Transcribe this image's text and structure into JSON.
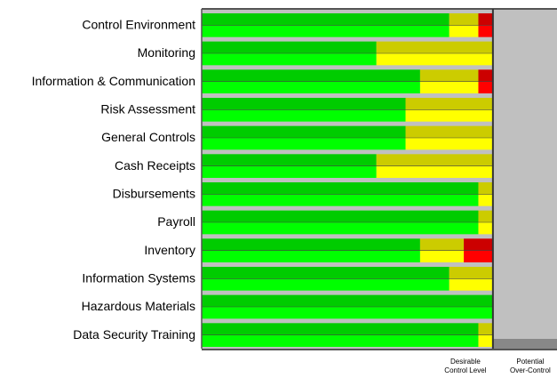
{
  "chart_data": {
    "type": "stacked-barh",
    "categories": [
      "Control Environment",
      "Monitoring",
      "Information & Communication",
      "Risk Assessment",
      "General Controls",
      "Cash Receipts",
      "Disbursements",
      "Payroll",
      "Inventory",
      "Information Systems",
      "Hazardous Materials",
      "Data Security Training"
    ],
    "series": [
      {
        "color": "#00ff00",
        "values": [
          85,
          60,
          75,
          70,
          70,
          60,
          95,
          95,
          75,
          85,
          100,
          95
        ]
      },
      {
        "color": "#ffff00",
        "values": [
          10,
          40,
          20,
          30,
          30,
          40,
          5,
          5,
          15,
          15,
          0,
          5
        ]
      },
      {
        "color": "#ff0000",
        "values": [
          5,
          0,
          5,
          0,
          0,
          0,
          0,
          0,
          10,
          0,
          0,
          0
        ]
      }
    ],
    "xlim": [
      0,
      122
    ],
    "annotations": [
      [
        "Desirable",
        "Control Level"
      ],
      [
        "Potential",
        "Over-Control"
      ]
    ]
  }
}
